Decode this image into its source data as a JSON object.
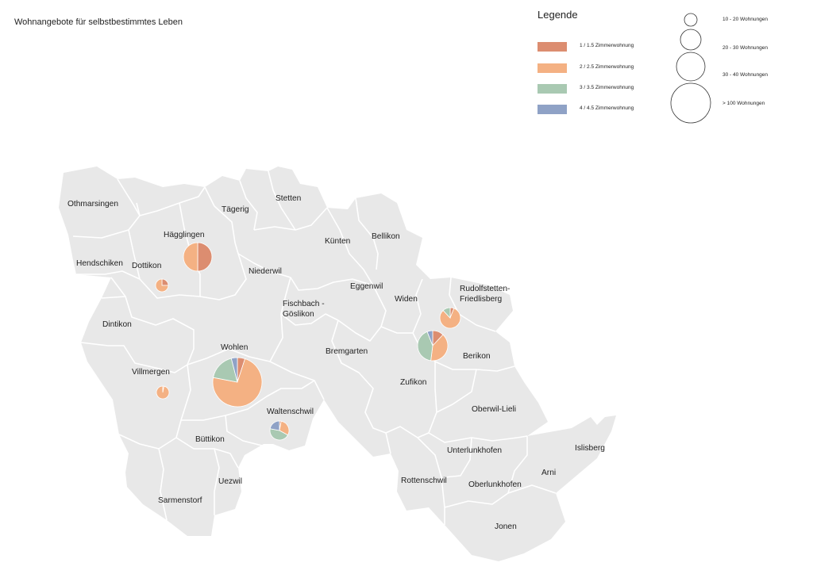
{
  "title": "Wohnangebote für selbstbestimmtes Leben",
  "legend": {
    "title": "Legende",
    "categories": [
      {
        "label": "1 / 1.5 Zimmerwohnung",
        "color": "#dc8d70"
      },
      {
        "label": "2 / 2.5 Zimmerwohnung",
        "color": "#f4b183"
      },
      {
        "label": "3 / 3.5 Zimmerwohnung",
        "color": "#a9c9b2"
      },
      {
        "label": "4 / 4.5 Zimmerwohnung",
        "color": "#8fa2c6"
      }
    ],
    "sizes": [
      {
        "label": "10 - 20 Wohnungen"
      },
      {
        "label": "20 - 30 Wohnungen"
      },
      {
        "label": "30 - 40 Wohnungen"
      },
      {
        "label": "> 100 Wohnungen"
      }
    ]
  },
  "map": {
    "region_fill": "#e8e8e8",
    "border_color": "#ffffff",
    "places": {
      "othmarsingen": "Othmarsingen",
      "taegerig": "Tägerig",
      "stetten": "Stetten",
      "haegglingen": "Hägglingen",
      "kuenten": "Künten",
      "bellikon": "Bellikon",
      "hendschiken": "Hendschiken",
      "dottikon": "Dottikon",
      "niederwil": "Niederwil",
      "eggenwil": "Eggenwil",
      "rudolfstetten1": "Rudolfstetten-",
      "rudolfstetten2": "Friedlisberg",
      "widen": "Widen",
      "fischbach1": "Fischbach -",
      "fischbach2": "Göslikon",
      "dintikon": "Dintikon",
      "wohlen": "Wohlen",
      "bremgarten": "Bremgarten",
      "berikon": "Berikon",
      "villmergen": "Villmergen",
      "zufikon": "Zufikon",
      "waltenschwil": "Waltenschwil",
      "oberwil": "Oberwil-Lieli",
      "buettikon": "Büttikon",
      "islisberg": "Islisberg",
      "unterlunkhofen": "Unterlunkhofen",
      "arni": "Arni",
      "uezwil": "Uezwil",
      "rottenschwil": "Rottenschwil",
      "oberlunkhofen": "Oberlunkhofen",
      "sarmenstorf": "Sarmenstorf",
      "jonen": "Jonen"
    }
  },
  "pies": [
    {
      "place": "Hägglingen",
      "size_class": "30 - 40 Wohnungen",
      "shares": [
        50,
        50,
        0,
        0
      ]
    },
    {
      "place": "Dottikon",
      "size_class": "10 - 20 Wohnungen",
      "shares": [
        25,
        75,
        0,
        0
      ]
    },
    {
      "place": "Wohlen",
      "size_class": "> 100 Wohnungen",
      "shares": [
        5,
        73,
        18,
        4
      ]
    },
    {
      "place": "Villmergen",
      "size_class": "10 - 20 Wohnungen",
      "shares": [
        3,
        97,
        0,
        0
      ]
    },
    {
      "place": "Waltenschwil",
      "size_class": "20 - 30 Wohnungen",
      "shares": [
        3,
        30,
        45,
        22
      ]
    },
    {
      "place": "Rudolfstetten-Friedlisberg",
      "size_class": "20 - 30 Wohnungen",
      "shares": [
        6,
        82,
        12,
        0
      ]
    },
    {
      "place": "Widen",
      "size_class": "30 - 40 Wohnungen",
      "shares": [
        12,
        40,
        42,
        6
      ]
    }
  ]
}
